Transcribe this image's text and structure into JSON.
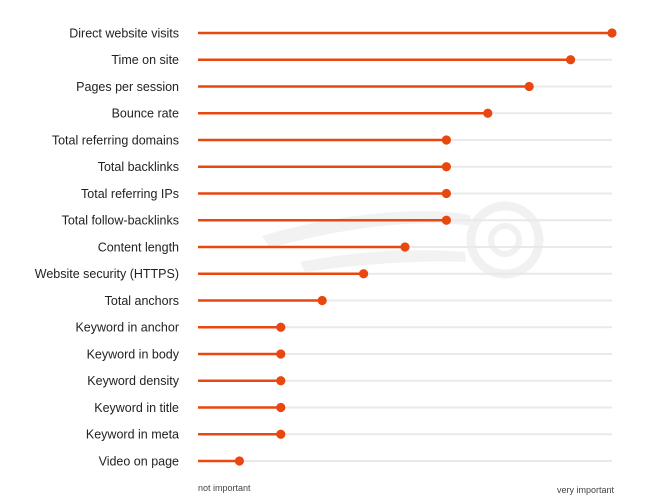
{
  "chart_data": {
    "type": "bar",
    "orientation": "horizontal",
    "style": "lollipop",
    "title": "",
    "xlabel": "",
    "ylabel": "",
    "x_axis_left_label": "not important",
    "x_axis_right_label": "very important",
    "xlim": [
      0,
      100
    ],
    "grid": false,
    "legend": "none",
    "categories": [
      "Direct website visits",
      "Time on site",
      "Pages per session",
      "Bounce rate",
      "Total referring domains",
      "Total backlinks",
      "Total referring IPs",
      "Total follow-backlinks",
      "Content length",
      "Website security (HTTPS)",
      "Total anchors",
      "Keyword in anchor",
      "Keyword in body",
      "Keyword density",
      "Keyword in title",
      "Keyword in meta",
      "Video on page"
    ],
    "values": [
      100,
      90,
      80,
      70,
      60,
      60,
      60,
      60,
      50,
      40,
      30,
      20,
      20,
      20,
      20,
      20,
      10
    ],
    "colors": {
      "bar": "#e8470f",
      "track": "#e9e9e9",
      "label": "#222222",
      "watermark": "#f1f1f1"
    }
  }
}
